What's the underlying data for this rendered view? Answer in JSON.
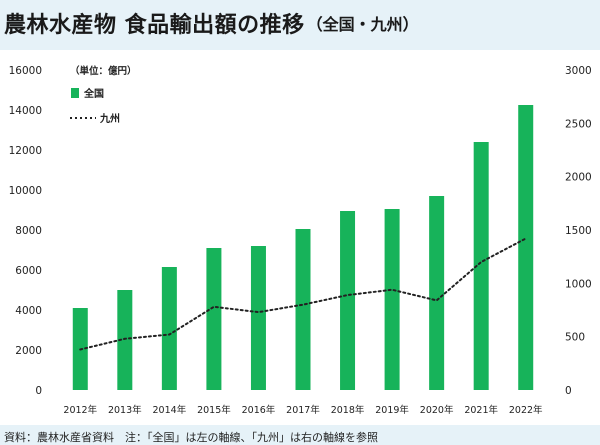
{
  "header": {
    "title": "農林水産物 食品輸出額の推移",
    "subtitle": "（全国・九州）"
  },
  "footer": {
    "note": "資料：農林水産省資料　注：「全国」は左の軸線、「九州」は右の軸線を参照"
  },
  "colors": {
    "bar": "#17b35a",
    "line": "#222222",
    "background": "#e6f2f8",
    "panel": "#ffffff"
  },
  "chart_data": {
    "type": "bar",
    "unit_label": "（単位：億円）",
    "categories": [
      "2012年",
      "2013年",
      "2014年",
      "2015年",
      "2016年",
      "2017年",
      "2018年",
      "2019年",
      "2020年",
      "2021年",
      "2022年"
    ],
    "series": [
      {
        "name": "全国",
        "type": "bar",
        "axis": "left",
        "values": [
          4100,
          5000,
          6150,
          7100,
          7200,
          8050,
          8950,
          9050,
          9700,
          12400,
          14250
        ]
      },
      {
        "name": "九州",
        "type": "line",
        "style": "dotted",
        "axis": "right",
        "values": [
          380,
          480,
          520,
          780,
          730,
          800,
          890,
          940,
          840,
          1200,
          1420
        ]
      }
    ],
    "left_axis": {
      "ylim": [
        0,
        16000
      ],
      "ticks": [
        0,
        2000,
        4000,
        6000,
        8000,
        10000,
        12000,
        14000,
        16000
      ]
    },
    "right_axis": {
      "ylim": [
        0,
        3000
      ],
      "ticks": [
        0,
        500,
        1000,
        1500,
        2000,
        2500,
        3000
      ]
    },
    "legend_position": "top-left",
    "grid": false
  }
}
